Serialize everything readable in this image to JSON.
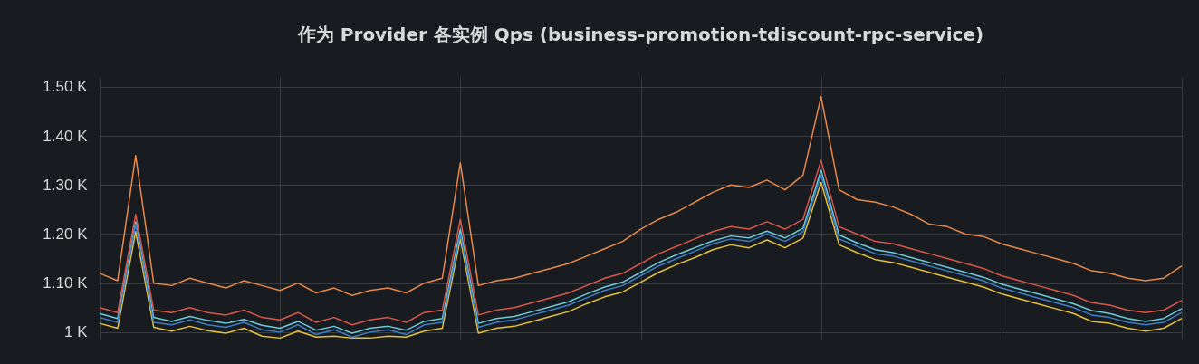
{
  "chart_data": {
    "type": "line",
    "title": "作为 Provider 各实例 Qps (business-promotion-tdiscount-rpc-service)",
    "categories": [
      null,
      null,
      null,
      null,
      null,
      null,
      null,
      null,
      null,
      null,
      null,
      null,
      null,
      null,
      null,
      null,
      null,
      null,
      null,
      null,
      null,
      null,
      null,
      null,
      null,
      null,
      null,
      null,
      null,
      null,
      null,
      null,
      null,
      null,
      null,
      null,
      null,
      null,
      null,
      null,
      null,
      null,
      null,
      null,
      null,
      null,
      null,
      null,
      null,
      null,
      null,
      null,
      null,
      null,
      null,
      null,
      null,
      null,
      null,
      null,
      null
    ],
    "ylim": [
      985,
      1520
    ],
    "yticks": [
      {
        "value": 1000,
        "label": "1 K"
      },
      {
        "value": 1100,
        "label": "1.10 K"
      },
      {
        "value": 1200,
        "label": "1.20 K"
      },
      {
        "value": 1300,
        "label": "1.30 K"
      },
      {
        "value": 1400,
        "label": "1.40 K"
      },
      {
        "value": 1500,
        "label": "1.50 K"
      }
    ],
    "grid": true,
    "marker": "none",
    "line_style": "solid",
    "series": [
      {
        "color": "#e5c23b",
        "values": [
          1018,
          1008,
          1205,
          1010,
          1002,
          1012,
          1003,
          998,
          1008,
          992,
          988,
          1002,
          990,
          992,
          988,
          988,
          992,
          990,
          1002,
          1008,
          1190,
          998,
          1008,
          1012,
          1022,
          1032,
          1042,
          1058,
          1072,
          1082,
          1102,
          1122,
          1138,
          1152,
          1168,
          1178,
          1172,
          1188,
          1172,
          1192,
          1305,
          1178,
          1162,
          1148,
          1142,
          1132,
          1122,
          1112,
          1102,
          1092,
          1078,
          1068,
          1058,
          1048,
          1038,
          1022,
          1018,
          1008,
          1002,
          1008,
          1028
        ]
      },
      {
        "color": "#6ccbd9",
        "values": [
          1038,
          1028,
          1225,
          1030,
          1022,
          1032,
          1024,
          1018,
          1026,
          1014,
          1008,
          1022,
          1004,
          1012,
          998,
          1008,
          1012,
          1004,
          1022,
          1028,
          1210,
          1018,
          1028,
          1032,
          1042,
          1052,
          1062,
          1078,
          1092,
          1102,
          1122,
          1142,
          1158,
          1172,
          1186,
          1196,
          1192,
          1206,
          1192,
          1212,
          1330,
          1198,
          1182,
          1168,
          1162,
          1152,
          1142,
          1132,
          1122,
          1112,
          1098,
          1088,
          1078,
          1068,
          1058,
          1044,
          1038,
          1028,
          1022,
          1028,
          1048
        ]
      },
      {
        "color": "#d8574a",
        "values": [
          1050,
          1040,
          1240,
          1045,
          1040,
          1050,
          1040,
          1035,
          1045,
          1030,
          1025,
          1040,
          1020,
          1030,
          1015,
          1025,
          1030,
          1020,
          1040,
          1045,
          1230,
          1035,
          1045,
          1050,
          1060,
          1070,
          1080,
          1095,
          1110,
          1120,
          1140,
          1160,
          1175,
          1190,
          1205,
          1215,
          1210,
          1225,
          1210,
          1230,
          1350,
          1215,
          1200,
          1185,
          1180,
          1170,
          1160,
          1150,
          1140,
          1130,
          1115,
          1105,
          1095,
          1085,
          1075,
          1060,
          1055,
          1045,
          1040,
          1045,
          1065
        ]
      },
      {
        "color": "#e8894a",
        "values": [
          1120,
          1105,
          1360,
          1100,
          1095,
          1110,
          1100,
          1090,
          1105,
          1095,
          1085,
          1100,
          1080,
          1090,
          1075,
          1085,
          1090,
          1080,
          1100,
          1110,
          1345,
          1095,
          1105,
          1110,
          1120,
          1130,
          1140,
          1155,
          1170,
          1185,
          1210,
          1230,
          1245,
          1265,
          1285,
          1300,
          1295,
          1310,
          1290,
          1320,
          1480,
          1290,
          1270,
          1265,
          1255,
          1240,
          1220,
          1215,
          1200,
          1195,
          1180,
          1170,
          1160,
          1150,
          1140,
          1125,
          1120,
          1110,
          1105,
          1110,
          1135
        ]
      },
      {
        "color": "#3d7fc8",
        "values": [
          1030,
          1020,
          1220,
          1020,
          1015,
          1025,
          1015,
          1010,
          1020,
          1005,
          1000,
          1015,
          995,
          1005,
          990,
          1000,
          1005,
          995,
          1015,
          1020,
          1200,
          1010,
          1020,
          1025,
          1035,
          1045,
          1055,
          1070,
          1085,
          1095,
          1115,
          1135,
          1150,
          1165,
          1180,
          1190,
          1185,
          1200,
          1185,
          1205,
          1320,
          1190,
          1175,
          1160,
          1155,
          1145,
          1135,
          1125,
          1115,
          1105,
          1090,
          1080,
          1070,
          1060,
          1050,
          1035,
          1030,
          1020,
          1015,
          1020,
          1040
        ]
      }
    ]
  }
}
